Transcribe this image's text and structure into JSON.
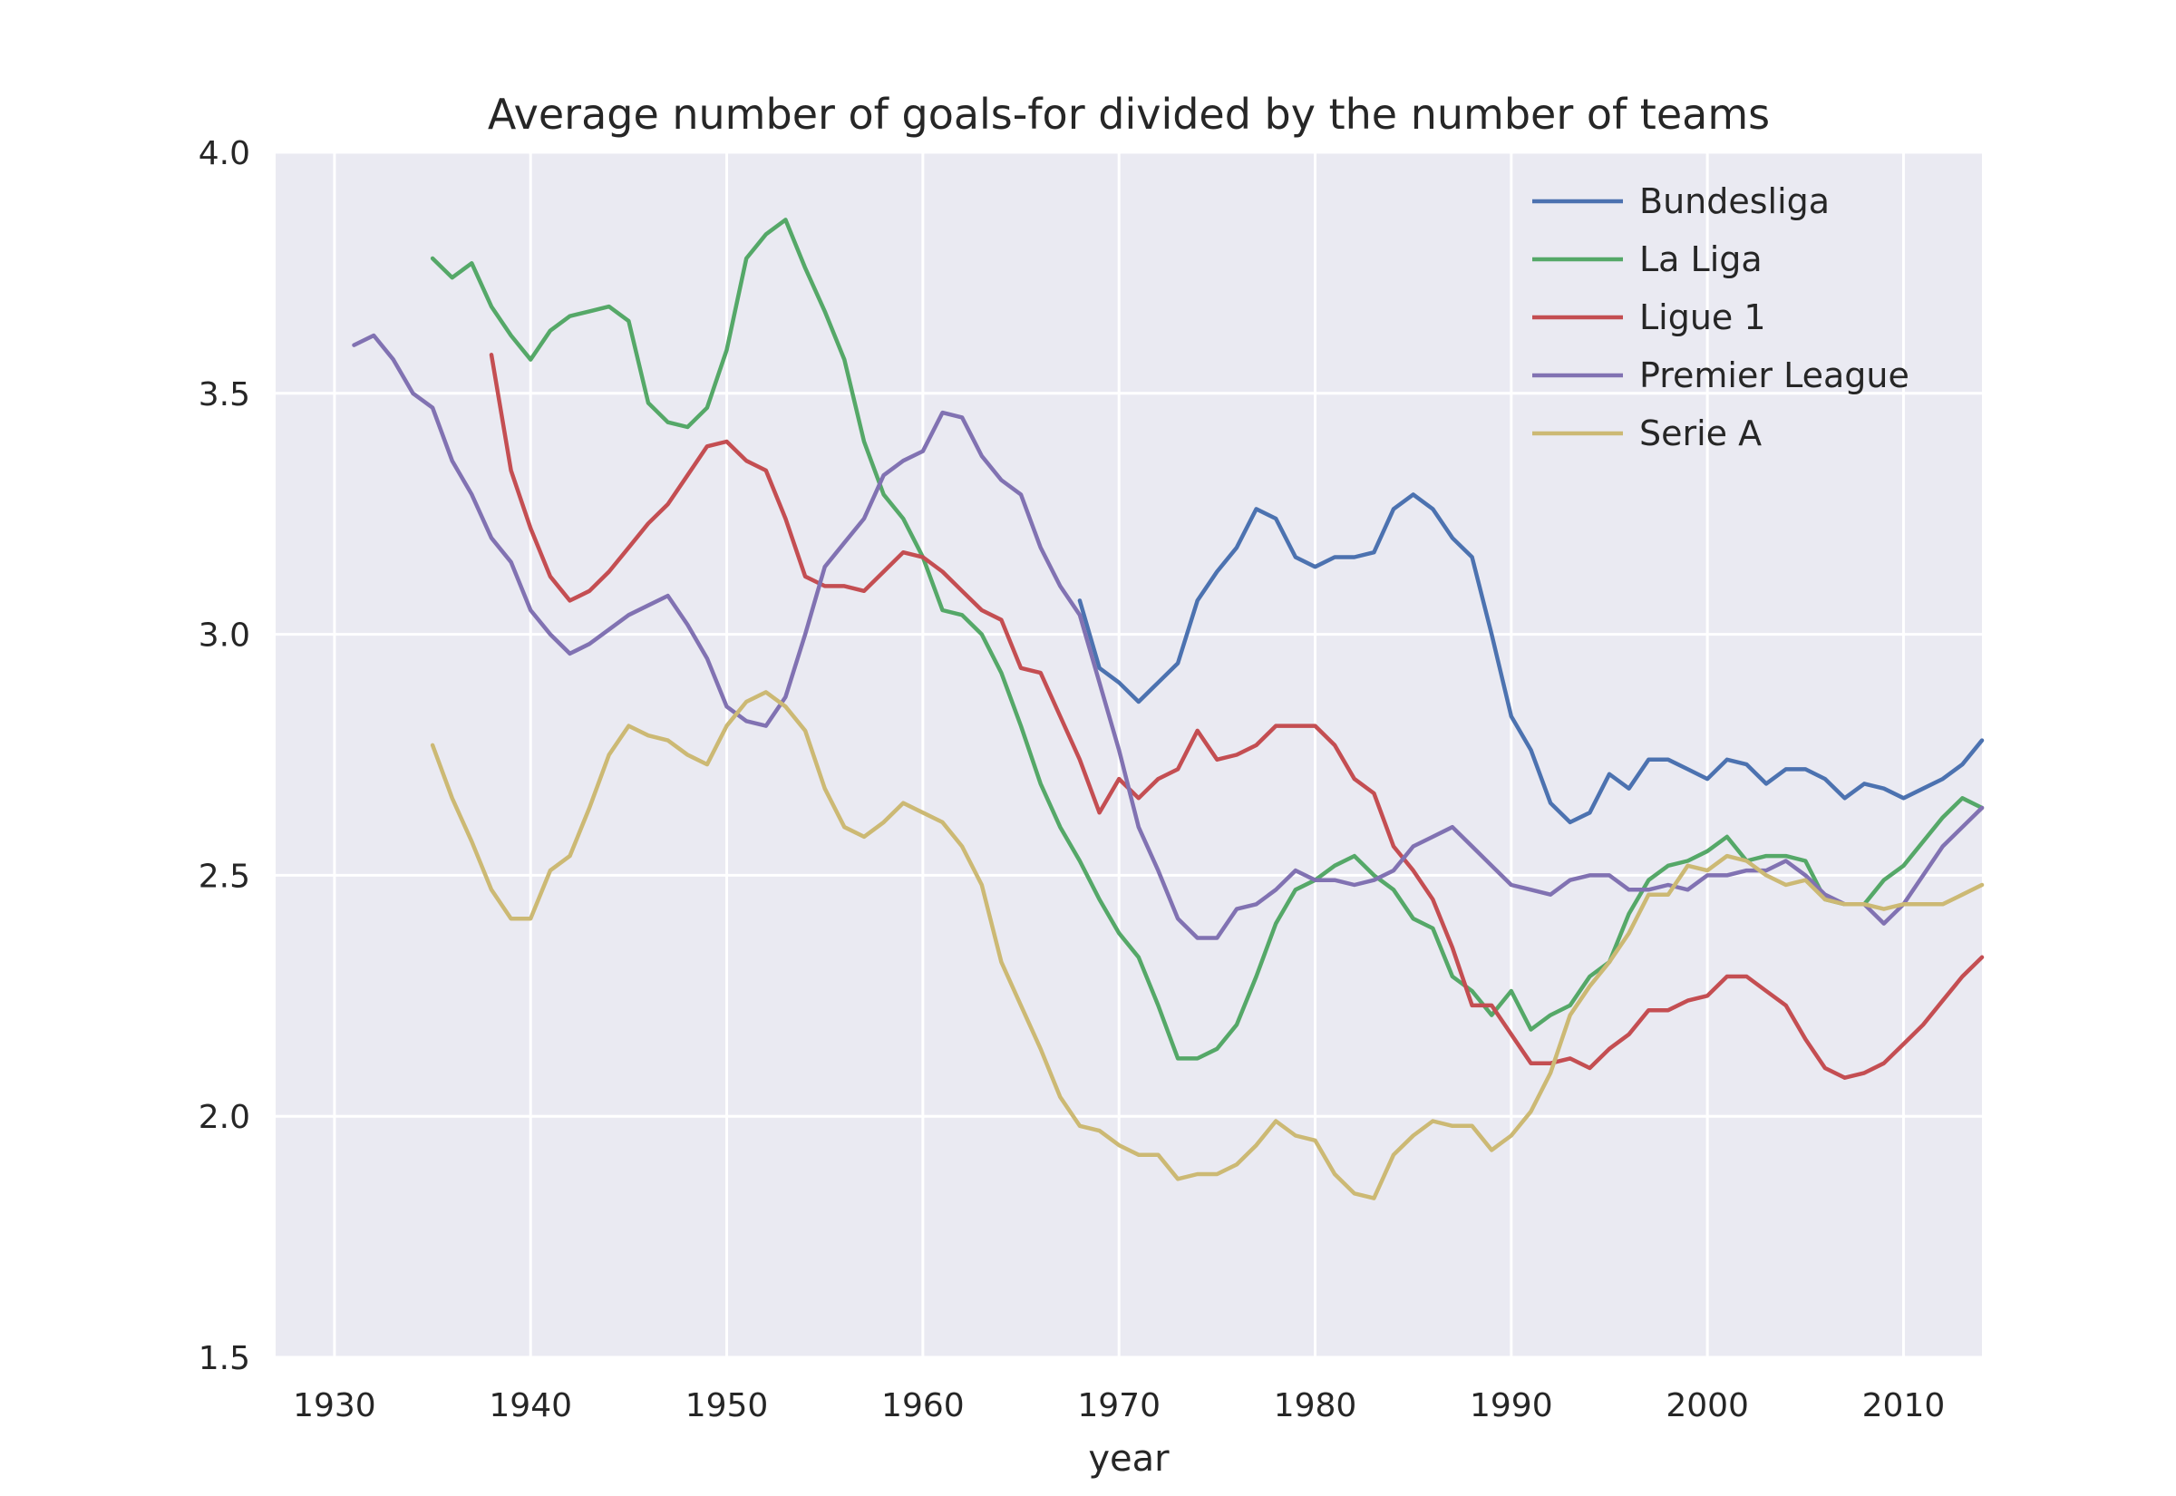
{
  "chart_data": {
    "type": "line",
    "title": "Average number of goals-for divided by the number of teams",
    "xlabel": "year",
    "ylabel": "",
    "xlim": [
      1927,
      2014
    ],
    "ylim": [
      1.5,
      4.0
    ],
    "xticks": [
      1930,
      1940,
      1950,
      1960,
      1970,
      1980,
      1990,
      2000,
      2010
    ],
    "yticks": [
      "1.5",
      "2.0",
      "2.5",
      "3.0",
      "3.5",
      "4.0"
    ],
    "grid": true,
    "legend": "top-right",
    "series": [
      {
        "name": "Bundesliga",
        "color": "#4c72b0",
        "x": [
          1968,
          1969,
          1970,
          1971,
          1972,
          1973,
          1974,
          1975,
          1976,
          1977,
          1978,
          1979,
          1980,
          1981,
          1982,
          1983,
          1984,
          1985,
          1986,
          1987,
          1988,
          1989,
          1990,
          1991,
          1992,
          1993,
          1994,
          1995,
          1996,
          1997,
          1998,
          1999,
          2000,
          2001,
          2002,
          2003,
          2004,
          2005,
          2006,
          2007,
          2008,
          2009,
          2010,
          2011,
          2012,
          2013,
          2014
        ],
        "y": [
          3.07,
          2.93,
          2.9,
          2.86,
          2.9,
          2.94,
          3.07,
          3.13,
          3.18,
          3.26,
          3.24,
          3.16,
          3.14,
          3.16,
          3.16,
          3.17,
          3.26,
          3.29,
          3.26,
          3.2,
          3.16,
          3.0,
          2.83,
          2.76,
          2.65,
          2.61,
          2.63,
          2.71,
          2.68,
          2.74,
          2.74,
          2.72,
          2.7,
          2.74,
          2.73,
          2.69,
          2.72,
          2.72,
          2.7,
          2.66,
          2.69,
          2.68,
          2.66,
          2.68,
          2.7,
          2.73,
          2.78
        ]
      },
      {
        "name": "La Liga",
        "color": "#55a868",
        "x": [
          1935,
          1936,
          1937,
          1938,
          1939,
          1940,
          1941,
          1942,
          1943,
          1944,
          1945,
          1946,
          1947,
          1948,
          1949,
          1950,
          1951,
          1952,
          1953,
          1954,
          1955,
          1956,
          1957,
          1958,
          1959,
          1960,
          1961,
          1962,
          1963,
          1964,
          1965,
          1966,
          1967,
          1968,
          1969,
          1970,
          1971,
          1972,
          1973,
          1974,
          1975,
          1976,
          1977,
          1978,
          1979,
          1980,
          1981,
          1982,
          1983,
          1984,
          1985,
          1986,
          1987,
          1988,
          1989,
          1990,
          1991,
          1992,
          1993,
          1994,
          1995,
          1996,
          1997,
          1998,
          1999,
          2000,
          2001,
          2002,
          2003,
          2004,
          2005,
          2006,
          2007,
          2008,
          2009,
          2010,
          2011,
          2012,
          2013,
          2014
        ],
        "y": [
          3.78,
          3.74,
          3.77,
          3.68,
          3.62,
          3.57,
          3.63,
          3.66,
          3.67,
          3.68,
          3.65,
          3.48,
          3.44,
          3.43,
          3.47,
          3.59,
          3.78,
          3.83,
          3.86,
          3.76,
          3.67,
          3.57,
          3.4,
          3.29,
          3.24,
          3.16,
          3.05,
          3.04,
          3.0,
          2.92,
          2.81,
          2.69,
          2.6,
          2.53,
          2.45,
          2.38,
          2.33,
          2.23,
          2.12,
          2.12,
          2.14,
          2.19,
          2.29,
          2.4,
          2.47,
          2.49,
          2.52,
          2.54,
          2.5,
          2.47,
          2.41,
          2.39,
          2.29,
          2.26,
          2.21,
          2.26,
          2.18,
          2.21,
          2.23,
          2.29,
          2.32,
          2.42,
          2.49,
          2.52,
          2.53,
          2.55,
          2.58,
          2.53,
          2.54,
          2.54,
          2.53,
          2.45,
          2.44,
          2.44,
          2.49,
          2.52,
          2.57,
          2.62,
          2.66,
          2.64
        ]
      },
      {
        "name": "Ligue 1",
        "color": "#c44e52",
        "x": [
          1938,
          1939,
          1940,
          1941,
          1942,
          1943,
          1944,
          1945,
          1946,
          1947,
          1948,
          1949,
          1950,
          1951,
          1952,
          1953,
          1954,
          1955,
          1956,
          1957,
          1958,
          1959,
          1960,
          1961,
          1962,
          1963,
          1964,
          1965,
          1966,
          1967,
          1968,
          1969,
          1970,
          1971,
          1972,
          1973,
          1974,
          1975,
          1976,
          1977,
          1978,
          1979,
          1980,
          1981,
          1982,
          1983,
          1984,
          1985,
          1986,
          1987,
          1988,
          1989,
          1990,
          1991,
          1992,
          1993,
          1994,
          1995,
          1996,
          1997,
          1998,
          1999,
          2000,
          2001,
          2002,
          2003,
          2004,
          2005,
          2006,
          2007,
          2008,
          2009,
          2010,
          2011,
          2012,
          2013,
          2014
        ],
        "y": [
          3.58,
          3.34,
          3.22,
          3.12,
          3.07,
          3.09,
          3.13,
          3.18,
          3.23,
          3.27,
          3.33,
          3.39,
          3.4,
          3.36,
          3.34,
          3.24,
          3.12,
          3.1,
          3.1,
          3.09,
          3.13,
          3.17,
          3.16,
          3.13,
          3.09,
          3.05,
          3.03,
          2.93,
          2.92,
          2.83,
          2.74,
          2.63,
          2.7,
          2.66,
          2.7,
          2.72,
          2.8,
          2.74,
          2.75,
          2.77,
          2.81,
          2.81,
          2.81,
          2.77,
          2.7,
          2.67,
          2.56,
          2.51,
          2.45,
          2.35,
          2.23,
          2.23,
          2.17,
          2.11,
          2.11,
          2.12,
          2.1,
          2.14,
          2.17,
          2.22,
          2.22,
          2.24,
          2.25,
          2.29,
          2.29,
          2.26,
          2.23,
          2.16,
          2.1,
          2.08,
          2.09,
          2.11,
          2.15,
          2.19,
          2.24,
          2.29,
          2.33
        ]
      },
      {
        "name": "Premier League",
        "color": "#8172b2",
        "x": [
          1931,
          1932,
          1933,
          1934,
          1935,
          1936,
          1937,
          1938,
          1939,
          1940,
          1941,
          1942,
          1943,
          1944,
          1945,
          1946,
          1947,
          1948,
          1949,
          1950,
          1951,
          1952,
          1953,
          1954,
          1955,
          1956,
          1957,
          1958,
          1959,
          1960,
          1961,
          1962,
          1963,
          1964,
          1965,
          1966,
          1967,
          1968,
          1969,
          1970,
          1971,
          1972,
          1973,
          1974,
          1975,
          1976,
          1977,
          1978,
          1979,
          1980,
          1981,
          1982,
          1983,
          1984,
          1985,
          1986,
          1987,
          1988,
          1989,
          1990,
          1991,
          1992,
          1993,
          1994,
          1995,
          1996,
          1997,
          1998,
          1999,
          2000,
          2001,
          2002,
          2003,
          2004,
          2005,
          2006,
          2007,
          2008,
          2009,
          2010,
          2011,
          2012,
          2013,
          2014
        ],
        "y": [
          3.6,
          3.62,
          3.57,
          3.5,
          3.47,
          3.36,
          3.29,
          3.2,
          3.15,
          3.05,
          3.0,
          2.96,
          2.98,
          3.01,
          3.04,
          3.06,
          3.08,
          3.02,
          2.95,
          2.85,
          2.82,
          2.81,
          2.87,
          3.0,
          3.14,
          3.19,
          3.24,
          3.33,
          3.36,
          3.38,
          3.46,
          3.45,
          3.37,
          3.32,
          3.29,
          3.18,
          3.1,
          3.04,
          2.9,
          2.76,
          2.6,
          2.51,
          2.41,
          2.37,
          2.37,
          2.43,
          2.44,
          2.47,
          2.51,
          2.49,
          2.49,
          2.48,
          2.49,
          2.51,
          2.56,
          2.58,
          2.6,
          2.56,
          2.52,
          2.48,
          2.47,
          2.46,
          2.49,
          2.5,
          2.5,
          2.47,
          2.47,
          2.48,
          2.47,
          2.5,
          2.5,
          2.51,
          2.51,
          2.53,
          2.5,
          2.46,
          2.44,
          2.44,
          2.4,
          2.44,
          2.5,
          2.56,
          2.6,
          2.64
        ]
      },
      {
        "name": "Serie A",
        "color": "#ccb974",
        "x": [
          1935,
          1936,
          1937,
          1938,
          1939,
          1940,
          1941,
          1942,
          1943,
          1944,
          1945,
          1946,
          1947,
          1948,
          1949,
          1950,
          1951,
          1952,
          1953,
          1954,
          1955,
          1956,
          1957,
          1958,
          1959,
          1960,
          1961,
          1962,
          1963,
          1964,
          1965,
          1966,
          1967,
          1968,
          1969,
          1970,
          1971,
          1972,
          1973,
          1974,
          1975,
          1976,
          1977,
          1978,
          1979,
          1980,
          1981,
          1982,
          1983,
          1984,
          1985,
          1986,
          1987,
          1988,
          1989,
          1990,
          1991,
          1992,
          1993,
          1994,
          1995,
          1996,
          1997,
          1998,
          1999,
          2000,
          2001,
          2002,
          2003,
          2004,
          2005,
          2006,
          2007,
          2008,
          2009,
          2010,
          2011,
          2012,
          2013,
          2014
        ],
        "y": [
          2.77,
          2.66,
          2.57,
          2.47,
          2.41,
          2.41,
          2.51,
          2.54,
          2.64,
          2.75,
          2.81,
          2.79,
          2.78,
          2.75,
          2.73,
          2.81,
          2.86,
          2.88,
          2.85,
          2.8,
          2.68,
          2.6,
          2.58,
          2.61,
          2.65,
          2.63,
          2.61,
          2.56,
          2.48,
          2.32,
          2.23,
          2.14,
          2.04,
          1.98,
          1.97,
          1.94,
          1.92,
          1.92,
          1.87,
          1.88,
          1.88,
          1.9,
          1.94,
          1.99,
          1.96,
          1.95,
          1.88,
          1.84,
          1.83,
          1.92,
          1.96,
          1.99,
          1.98,
          1.98,
          1.93,
          1.96,
          2.01,
          2.09,
          2.21,
          2.27,
          2.32,
          2.38,
          2.46,
          2.46,
          2.52,
          2.51,
          2.54,
          2.53,
          2.5,
          2.48,
          2.49,
          2.45,
          2.44,
          2.44,
          2.43,
          2.44,
          2.44,
          2.44,
          2.46,
          2.48
        ]
      }
    ]
  }
}
